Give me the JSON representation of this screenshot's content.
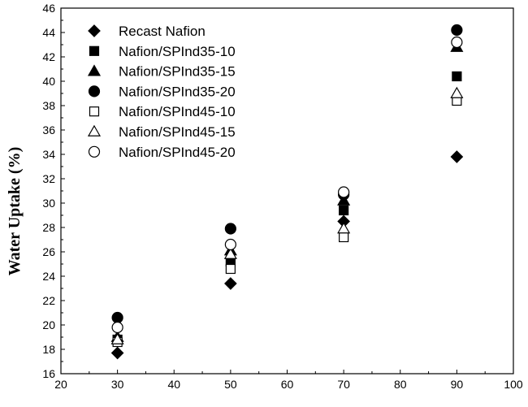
{
  "chart_data": {
    "type": "scatter",
    "title": "",
    "xlabel": "",
    "ylabel": "Water Uptake (%)",
    "xlim": [
      20,
      100
    ],
    "ylim": [
      16,
      46
    ],
    "xticks": [
      20,
      30,
      40,
      50,
      60,
      70,
      80,
      90,
      100
    ],
    "yticks": [
      16,
      18,
      20,
      22,
      24,
      26,
      28,
      30,
      32,
      34,
      36,
      38,
      40,
      42,
      44,
      46
    ],
    "grid": false,
    "legend_position": "top-left",
    "x": [
      30,
      50,
      70,
      90
    ],
    "series": [
      {
        "name": "Recast Nafion",
        "marker": "diamond",
        "filled": true,
        "values": [
          17.7,
          23.4,
          28.5,
          33.8
        ]
      },
      {
        "name": "Nafion/SPInd35-10",
        "marker": "square",
        "filled": true,
        "values": [
          18.8,
          25.2,
          29.4,
          40.4
        ]
      },
      {
        "name": "Nafion/SPInd35-15",
        "marker": "triangle",
        "filled": true,
        "values": [
          19.0,
          26.1,
          30.2,
          42.8
        ]
      },
      {
        "name": "Nafion/SPInd35-20",
        "marker": "circle",
        "filled": true,
        "values": [
          20.6,
          27.9,
          30.7,
          44.2
        ]
      },
      {
        "name": "Nafion/SPInd45-10",
        "marker": "square",
        "filled": false,
        "values": [
          18.6,
          24.6,
          27.2,
          38.4
        ]
      },
      {
        "name": "Nafion/SPInd45-15",
        "marker": "triangle",
        "filled": false,
        "values": [
          18.8,
          25.8,
          27.9,
          39.0
        ]
      },
      {
        "name": "Nafion/SPInd45-20",
        "marker": "circle",
        "filled": false,
        "values": [
          19.8,
          26.6,
          30.9,
          43.2
        ]
      }
    ],
    "colors": {
      "axis": "#000000",
      "marker": "#000000",
      "background": "#ffffff"
    }
  }
}
